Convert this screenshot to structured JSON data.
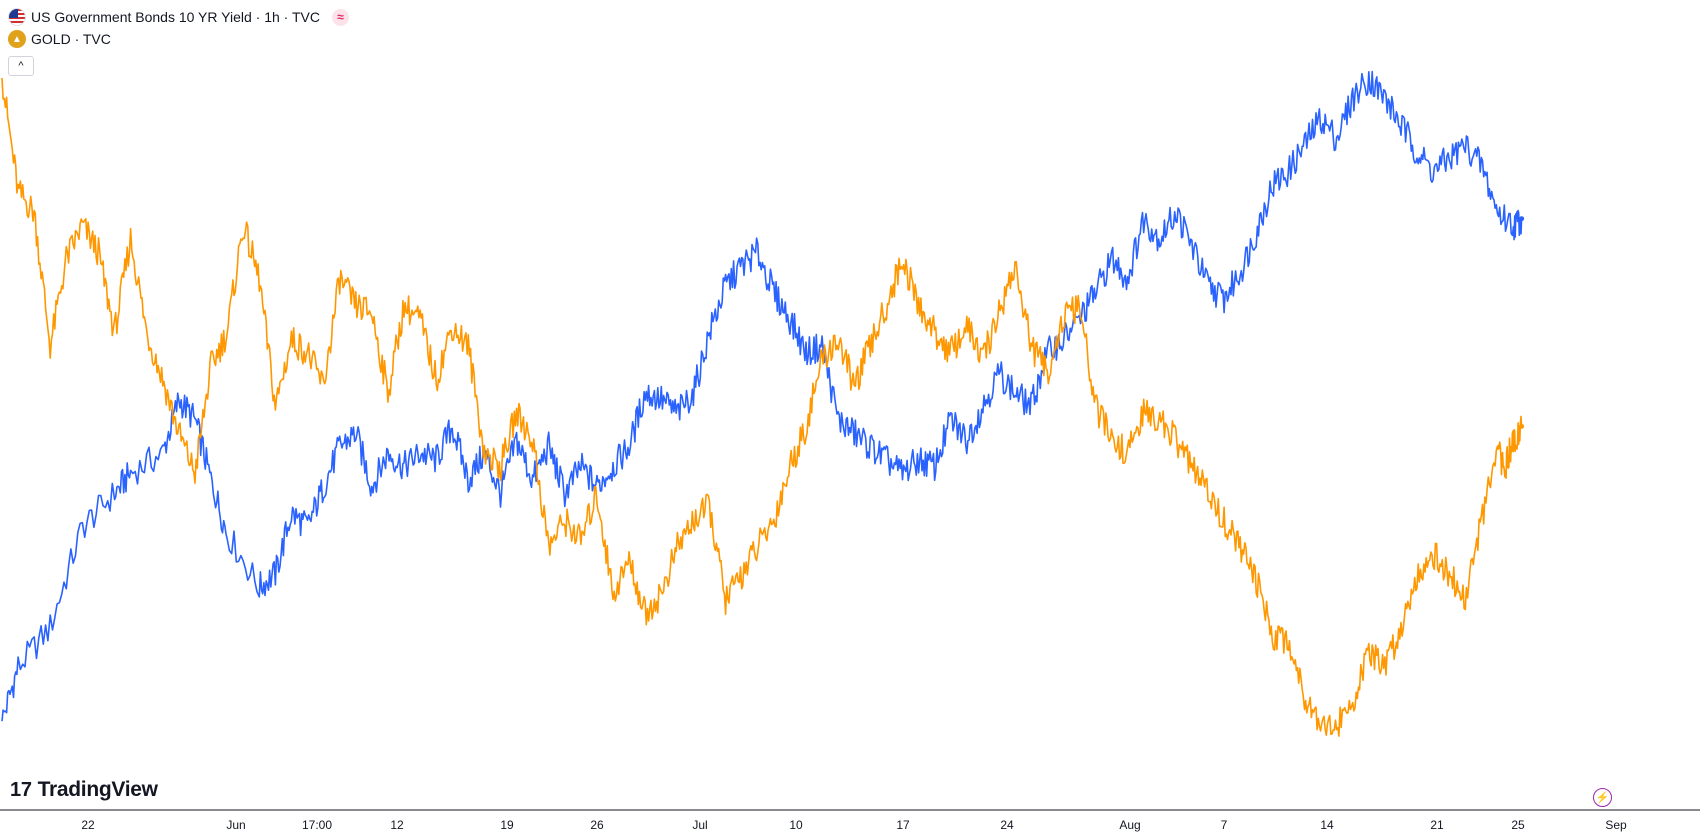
{
  "legend": {
    "bond": {
      "title": "US Government Bonds 10 YR Yield · 1h · TVC",
      "icon": "us-flag-icon",
      "badge": "≈"
    },
    "gold": {
      "title": "GOLD · TVC",
      "icon": "gold-bar-icon"
    },
    "collapse_symbol": "^"
  },
  "logo": {
    "text": "TradingView",
    "mark": "17"
  },
  "bolt_symbol": "⚡",
  "colors": {
    "bond_line": "#2962ff",
    "gold_line": "#ff9800",
    "axis_text": "#131722",
    "axis_line": "#131722"
  },
  "chart_data": {
    "type": "line",
    "x_tick_labels": [
      "22",
      "Jun",
      "17:00",
      "12",
      "19",
      "26",
      "Jul",
      "10",
      "17",
      "24",
      "Aug",
      "7",
      "14",
      "21",
      "25",
      "Sep"
    ],
    "series": [
      {
        "name": "US Government Bonds 10 YR Yield",
        "color": "#2962ff",
        "points": [
          [
            0,
            0.04
          ],
          [
            0.01,
            0.12
          ],
          [
            0.03,
            0.18
          ],
          [
            0.05,
            0.33
          ],
          [
            0.07,
            0.38
          ],
          [
            0.08,
            0.41
          ],
          [
            0.1,
            0.44
          ],
          [
            0.11,
            0.52
          ],
          [
            0.12,
            0.49
          ],
          [
            0.13,
            0.4
          ],
          [
            0.14,
            0.32
          ],
          [
            0.16,
            0.24
          ],
          [
            0.17,
            0.26
          ],
          [
            0.18,
            0.35
          ],
          [
            0.19,
            0.33
          ],
          [
            0.2,
            0.39
          ],
          [
            0.21,
            0.45
          ],
          [
            0.22,
            0.47
          ],
          [
            0.23,
            0.39
          ],
          [
            0.24,
            0.44
          ],
          [
            0.25,
            0.42
          ],
          [
            0.26,
            0.44
          ],
          [
            0.27,
            0.43
          ],
          [
            0.28,
            0.48
          ],
          [
            0.29,
            0.4
          ],
          [
            0.3,
            0.44
          ],
          [
            0.31,
            0.38
          ],
          [
            0.32,
            0.46
          ],
          [
            0.33,
            0.4
          ],
          [
            0.34,
            0.45
          ],
          [
            0.35,
            0.38
          ],
          [
            0.36,
            0.42
          ],
          [
            0.37,
            0.39
          ],
          [
            0.38,
            0.42
          ],
          [
            0.39,
            0.45
          ],
          [
            0.4,
            0.53
          ],
          [
            0.41,
            0.52
          ],
          [
            0.42,
            0.5
          ],
          [
            0.43,
            0.53
          ],
          [
            0.44,
            0.62
          ],
          [
            0.45,
            0.69
          ],
          [
            0.46,
            0.72
          ],
          [
            0.47,
            0.74
          ],
          [
            0.48,
            0.68
          ],
          [
            0.49,
            0.64
          ],
          [
            0.5,
            0.59
          ],
          [
            0.51,
            0.6
          ],
          [
            0.52,
            0.49
          ],
          [
            0.53,
            0.47
          ],
          [
            0.54,
            0.45
          ],
          [
            0.55,
            0.43
          ],
          [
            0.56,
            0.41
          ],
          [
            0.57,
            0.43
          ],
          [
            0.58,
            0.42
          ],
          [
            0.59,
            0.49
          ],
          [
            0.6,
            0.46
          ],
          [
            0.61,
            0.51
          ],
          [
            0.62,
            0.56
          ],
          [
            0.63,
            0.53
          ],
          [
            0.64,
            0.51
          ],
          [
            0.65,
            0.59
          ],
          [
            0.66,
            0.61
          ],
          [
            0.67,
            0.64
          ],
          [
            0.68,
            0.68
          ],
          [
            0.69,
            0.73
          ],
          [
            0.7,
            0.7
          ],
          [
            0.71,
            0.79
          ],
          [
            0.72,
            0.76
          ],
          [
            0.73,
            0.8
          ],
          [
            0.74,
            0.75
          ],
          [
            0.75,
            0.69
          ],
          [
            0.76,
            0.67
          ],
          [
            0.77,
            0.71
          ],
          [
            0.78,
            0.77
          ],
          [
            0.79,
            0.84
          ],
          [
            0.8,
            0.86
          ],
          [
            0.81,
            0.9
          ],
          [
            0.82,
            0.94
          ],
          [
            0.83,
            0.91
          ],
          [
            0.84,
            0.97
          ],
          [
            0.85,
            1.0
          ],
          [
            0.86,
            0.97
          ],
          [
            0.87,
            0.93
          ],
          [
            0.88,
            0.89
          ],
          [
            0.89,
            0.86
          ],
          [
            0.9,
            0.88
          ],
          [
            0.91,
            0.9
          ],
          [
            0.92,
            0.87
          ],
          [
            0.93,
            0.8
          ],
          [
            0.94,
            0.78
          ],
          [
            0.945,
            0.79
          ]
        ]
      },
      {
        "name": "GOLD",
        "color": "#ff9800",
        "points": [
          [
            0,
            1.0
          ],
          [
            0.01,
            0.83
          ],
          [
            0.02,
            0.8
          ],
          [
            0.03,
            0.6
          ],
          [
            0.04,
            0.73
          ],
          [
            0.05,
            0.78
          ],
          [
            0.06,
            0.74
          ],
          [
            0.07,
            0.62
          ],
          [
            0.08,
            0.76
          ],
          [
            0.09,
            0.62
          ],
          [
            0.1,
            0.55
          ],
          [
            0.11,
            0.47
          ],
          [
            0.12,
            0.41
          ],
          [
            0.13,
            0.57
          ],
          [
            0.14,
            0.62
          ],
          [
            0.15,
            0.78
          ],
          [
            0.16,
            0.7
          ],
          [
            0.17,
            0.51
          ],
          [
            0.18,
            0.61
          ],
          [
            0.19,
            0.59
          ],
          [
            0.2,
            0.54
          ],
          [
            0.21,
            0.7
          ],
          [
            0.22,
            0.66
          ],
          [
            0.23,
            0.65
          ],
          [
            0.24,
            0.53
          ],
          [
            0.25,
            0.66
          ],
          [
            0.26,
            0.64
          ],
          [
            0.27,
            0.55
          ],
          [
            0.28,
            0.63
          ],
          [
            0.29,
            0.6
          ],
          [
            0.3,
            0.44
          ],
          [
            0.31,
            0.42
          ],
          [
            0.32,
            0.5
          ],
          [
            0.33,
            0.46
          ],
          [
            0.34,
            0.3
          ],
          [
            0.35,
            0.34
          ],
          [
            0.36,
            0.31
          ],
          [
            0.37,
            0.38
          ],
          [
            0.38,
            0.23
          ],
          [
            0.39,
            0.28
          ],
          [
            0.4,
            0.2
          ],
          [
            0.41,
            0.23
          ],
          [
            0.42,
            0.3
          ],
          [
            0.43,
            0.34
          ],
          [
            0.44,
            0.36
          ],
          [
            0.45,
            0.22
          ],
          [
            0.46,
            0.26
          ],
          [
            0.47,
            0.3
          ],
          [
            0.48,
            0.34
          ],
          [
            0.49,
            0.42
          ],
          [
            0.5,
            0.48
          ],
          [
            0.51,
            0.58
          ],
          [
            0.52,
            0.61
          ],
          [
            0.53,
            0.54
          ],
          [
            0.54,
            0.6
          ],
          [
            0.55,
            0.66
          ],
          [
            0.56,
            0.73
          ],
          [
            0.57,
            0.66
          ],
          [
            0.58,
            0.62
          ],
          [
            0.59,
            0.59
          ],
          [
            0.6,
            0.63
          ],
          [
            0.61,
            0.58
          ],
          [
            0.62,
            0.65
          ],
          [
            0.63,
            0.72
          ],
          [
            0.64,
            0.6
          ],
          [
            0.65,
            0.56
          ],
          [
            0.66,
            0.64
          ],
          [
            0.67,
            0.66
          ],
          [
            0.68,
            0.51
          ],
          [
            0.69,
            0.46
          ],
          [
            0.7,
            0.44
          ],
          [
            0.71,
            0.5
          ],
          [
            0.72,
            0.49
          ],
          [
            0.73,
            0.46
          ],
          [
            0.74,
            0.42
          ],
          [
            0.75,
            0.38
          ],
          [
            0.76,
            0.34
          ],
          [
            0.77,
            0.3
          ],
          [
            0.78,
            0.25
          ],
          [
            0.79,
            0.17
          ],
          [
            0.8,
            0.16
          ],
          [
            0.81,
            0.08
          ],
          [
            0.82,
            0.04
          ],
          [
            0.83,
            0.03
          ],
          [
            0.84,
            0.07
          ],
          [
            0.85,
            0.14
          ],
          [
            0.86,
            0.12
          ],
          [
            0.87,
            0.18
          ],
          [
            0.88,
            0.26
          ],
          [
            0.89,
            0.29
          ],
          [
            0.9,
            0.26
          ],
          [
            0.91,
            0.22
          ],
          [
            0.92,
            0.34
          ],
          [
            0.93,
            0.44
          ],
          [
            0.935,
            0.42
          ],
          [
            0.94,
            0.46
          ],
          [
            0.945,
            0.48
          ]
        ]
      }
    ]
  }
}
